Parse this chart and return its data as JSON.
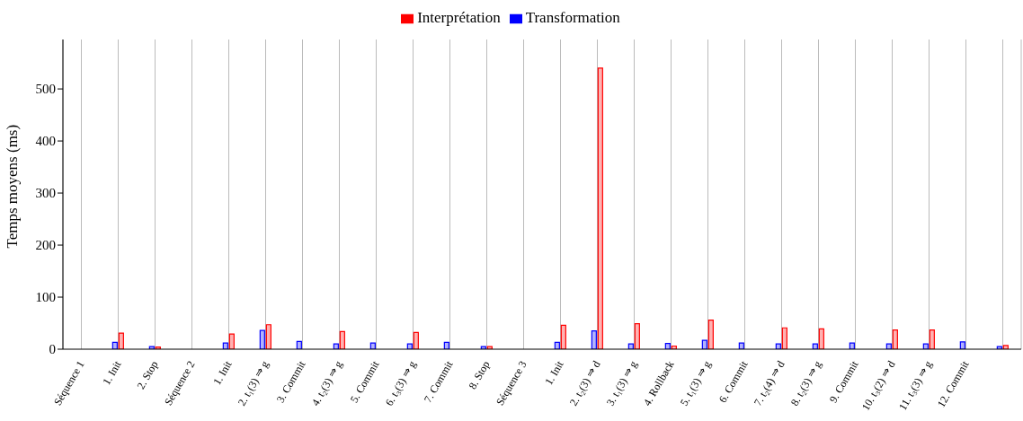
{
  "chart_data": {
    "type": "bar",
    "ylabel": "Temps moyens (ms)",
    "categories": [
      "Séquence 1",
      "1. Init",
      "2. Stop",
      "Séquence 2",
      "1. Init",
      "2. t₁(3) ⇒ g",
      "3. Commit",
      "4. t₂(3) ⇒ g",
      "5. Commit",
      "6. t₃(3) ⇒ g",
      "7. Commit",
      "8. Stop",
      "Séquence 3",
      "1. Init",
      "2. t₂(3) ⇒ d",
      "3. t₁(3) ⇒ g",
      "4. Rollback",
      "5. t₁(3) ⇒ g",
      "6. Commit",
      "7. t₂(4) ⇒ d",
      "8. t₂(3) ⇒ g",
      "9. Commit",
      "10. t₃(2) ⇒ d",
      "11. t₃(3) ⇒ g",
      "12. Commit",
      null
    ],
    "series": [
      {
        "name": "Transformation",
        "color": "#0000ff",
        "values": [
          0,
          13,
          5,
          0,
          12,
          36,
          15,
          10,
          12,
          10,
          13,
          5,
          0,
          13,
          35,
          10,
          11,
          17,
          12,
          10,
          10,
          12,
          10,
          10,
          14,
          5
        ]
      },
      {
        "name": "Interprétation",
        "color": "#ff0000",
        "values": [
          0,
          31,
          4,
          0,
          29,
          47,
          0,
          34,
          0,
          32,
          0,
          5,
          0,
          46,
          540,
          49,
          6,
          56,
          0,
          41,
          39,
          0,
          37,
          37,
          0,
          7
        ]
      }
    ],
    "ylim": [
      0,
      595
    ],
    "yticks": [
      0,
      100,
      200,
      300,
      400,
      500
    ],
    "grid": "x",
    "legend": "top"
  }
}
